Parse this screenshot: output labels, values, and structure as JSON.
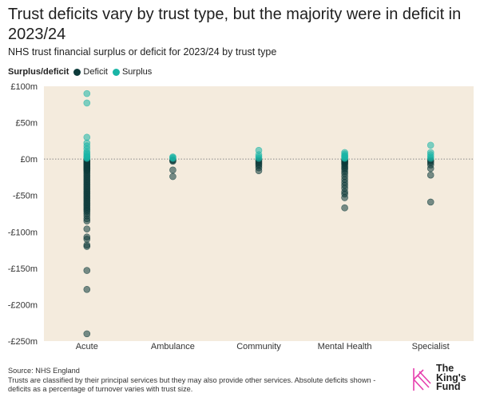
{
  "title": "Trust deficits vary by trust type, but the majority were in deficit in 2023/24",
  "subtitle": "NHS trust financial surplus or deficit for 2023/24 by trust type",
  "legend": {
    "title": "Surplus/deficit",
    "items": [
      {
        "label": "Deficit",
        "color": "#0d3b3b"
      },
      {
        "label": "Surplus",
        "color": "#1ab5a6"
      }
    ]
  },
  "footer": {
    "source": "Source: NHS England",
    "note": "Trusts are classified by their principal services but they may also provide other services. Absolute deficits shown - deficits as a percentage of turnover varies with trust size."
  },
  "logo": {
    "text_line1": "The",
    "text_line2": "King's",
    "text_line3": "Fund"
  },
  "chart_data": {
    "type": "scatter",
    "categories": [
      "Acute",
      "Ambulance",
      "Community",
      "Mental Health",
      "Specialist"
    ],
    "ylim": [
      -250,
      100
    ],
    "yticks": [
      100,
      50,
      0,
      -50,
      -100,
      -150,
      -200,
      -250
    ],
    "ytick_labels": [
      "£100m",
      "£50m",
      "£0m",
      "-£50m",
      "-£100m",
      "-£150m",
      "-£200m",
      "-£250m"
    ],
    "zero_line": "dotted",
    "series": [
      {
        "name": "Deficit",
        "color": "#0d3b3b",
        "points": {
          "Acute": [
            -1,
            -2,
            -3,
            -4,
            -5,
            -6,
            -7,
            -8,
            -9,
            -10,
            -11,
            -12,
            -13,
            -14,
            -15,
            -16,
            -18,
            -20,
            -22,
            -24,
            -26,
            -28,
            -30,
            -32,
            -34,
            -36,
            -38,
            -40,
            -42,
            -44,
            -46,
            -48,
            -50,
            -52,
            -54,
            -56,
            -58,
            -60,
            -62,
            -64,
            -66,
            -68,
            -70,
            -72,
            -75,
            -78,
            -82,
            -85,
            -96,
            -107,
            -110,
            -118,
            -120,
            -153,
            -179,
            -240
          ],
          "Ambulance": [
            -1,
            -2,
            -3,
            -15,
            -24
          ],
          "Community": [
            -1,
            -3,
            -5,
            -7,
            -9,
            -12,
            -16
          ],
          "Mental Health": [
            -1,
            -2,
            -3,
            -4,
            -5,
            -6,
            -8,
            -10,
            -12,
            -14,
            -17,
            -20,
            -24,
            -28,
            -32,
            -36,
            -40,
            -45,
            -48,
            -53,
            -67
          ],
          "Specialist": [
            -1,
            -3,
            -5,
            -8,
            -13,
            -22,
            -59
          ]
        }
      },
      {
        "name": "Surplus",
        "color": "#1ab5a6",
        "points": {
          "Acute": [
            1,
            2,
            3,
            4,
            6,
            8,
            10,
            14,
            18,
            22,
            30,
            77,
            90
          ],
          "Ambulance": [
            1,
            2,
            3
          ],
          "Community": [
            1,
            3,
            6,
            12
          ],
          "Mental Health": [
            1,
            2,
            3,
            4,
            5,
            7,
            9
          ],
          "Specialist": [
            1,
            3,
            6,
            9,
            19
          ]
        }
      }
    ]
  }
}
